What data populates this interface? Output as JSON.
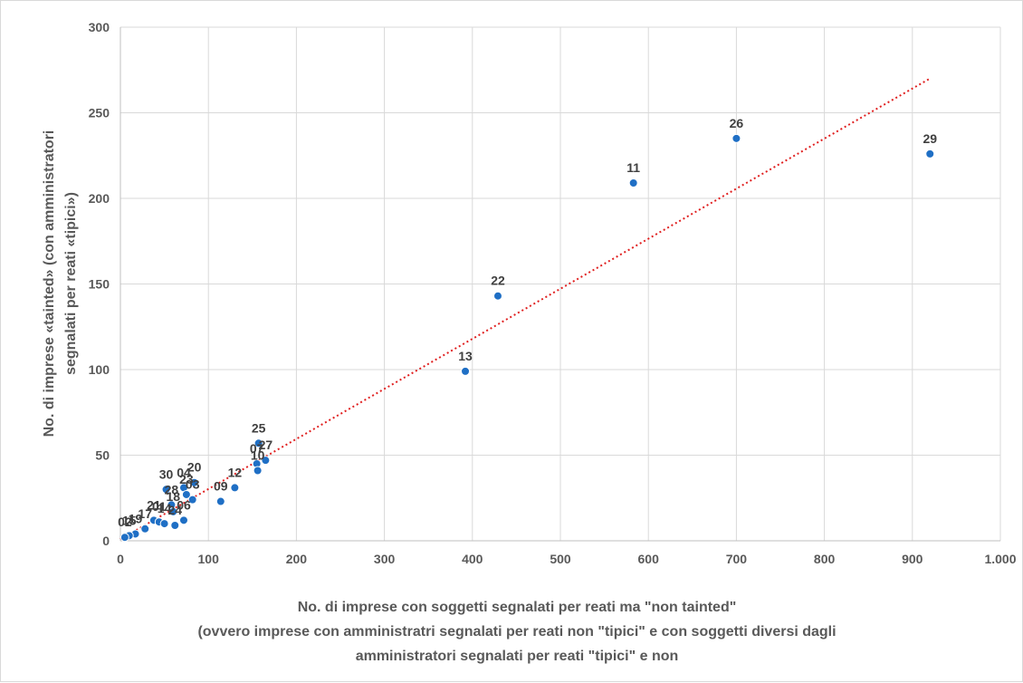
{
  "chart_data": {
    "type": "scatter",
    "xlim": [
      0,
      1000
    ],
    "ylim": [
      0,
      300
    ],
    "x_ticks": [
      0,
      100,
      200,
      300,
      400,
      500,
      600,
      700,
      800,
      900,
      1000
    ],
    "x_tick_labels": [
      "0",
      "100",
      "200",
      "300",
      "400",
      "500",
      "600",
      "700",
      "800",
      "900",
      "1.000"
    ],
    "y_ticks": [
      0,
      50,
      100,
      150,
      200,
      250,
      300
    ],
    "y_tick_labels": [
      "0",
      "50",
      "100",
      "150",
      "200",
      "250",
      "300"
    ],
    "ylabel_lines": [
      "No. di imprese «tainted» (con amministratori",
      "segnalati per reati «tipici»)"
    ],
    "xlabel_lines": [
      "No. di imprese con soggetti segnalati per reati ma \"non tainted\"",
      "(ovvero imprese con amministratri segnalati per reati non \"tipici\" e con soggetti diversi dagli",
      "amministratori segnalati per reati \"tipici\" e non"
    ],
    "grid": true,
    "trendline": {
      "style": "dotted",
      "color": "#e02020",
      "from": [
        0,
        1
      ],
      "to": [
        920,
        270
      ]
    },
    "marker_color": "#1f6fc5",
    "points": [
      {
        "label": "29",
        "x": 920,
        "y": 226
      },
      {
        "label": "26",
        "x": 700,
        "y": 235
      },
      {
        "label": "11",
        "x": 583,
        "y": 209
      },
      {
        "label": "22",
        "x": 429,
        "y": 143
      },
      {
        "label": "13",
        "x": 392,
        "y": 99
      },
      {
        "label": "25",
        "x": 157,
        "y": 57
      },
      {
        "label": "07",
        "x": 155,
        "y": 45
      },
      {
        "label": "27",
        "x": 165,
        "y": 47
      },
      {
        "label": "10",
        "x": 156,
        "y": 41
      },
      {
        "label": "12",
        "x": 130,
        "y": 31
      },
      {
        "label": "09",
        "x": 114,
        "y": 23
      },
      {
        "label": "20",
        "x": 84,
        "y": 34
      },
      {
        "label": "30",
        "x": 52,
        "y": 30
      },
      {
        "label": "04",
        "x": 72,
        "y": 31
      },
      {
        "label": "23",
        "x": 75,
        "y": 27
      },
      {
        "label": "03",
        "x": 82,
        "y": 24
      },
      {
        "label": "28",
        "x": 58,
        "y": 21
      },
      {
        "label": "18",
        "x": 60,
        "y": 17
      },
      {
        "label": "06",
        "x": 72,
        "y": 12
      },
      {
        "label": "24",
        "x": 62,
        "y": 9
      },
      {
        "label": "21",
        "x": 38,
        "y": 12
      },
      {
        "label": "01",
        "x": 44,
        "y": 11
      },
      {
        "label": "14",
        "x": 50,
        "y": 10
      },
      {
        "label": "17",
        "x": 28,
        "y": 7
      },
      {
        "label": "19",
        "x": 17,
        "y": 4
      },
      {
        "label": "15",
        "x": 10,
        "y": 3
      },
      {
        "label": "02",
        "x": 5,
        "y": 2
      }
    ]
  }
}
